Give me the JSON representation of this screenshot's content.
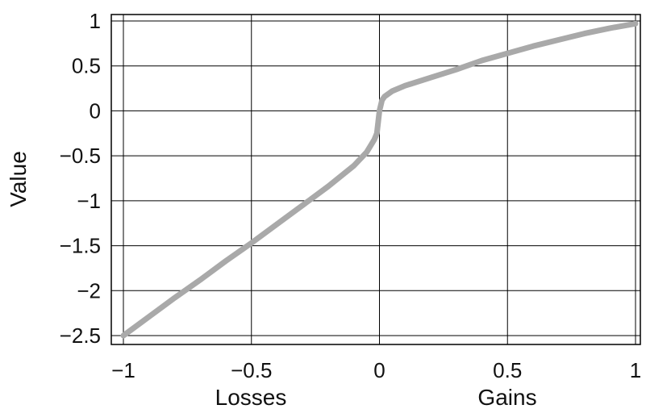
{
  "chart_data": {
    "type": "line",
    "title": "",
    "xlabel_left": "Losses",
    "xlabel_right": "Gains",
    "ylabel": "Value",
    "xlim": [
      -1,
      1
    ],
    "ylim": [
      -2.6,
      1.05
    ],
    "grid": true,
    "x_ticks": [
      -1,
      -0.5,
      0,
      0.5,
      1
    ],
    "x_tick_labels": [
      "−1",
      "−0.5",
      "0",
      "0.5",
      "1"
    ],
    "y_ticks": [
      1,
      0.5,
      0,
      -0.5,
      -1,
      -1.5,
      -2,
      -2.5
    ],
    "y_tick_labels": [
      "1",
      "0.5",
      "0",
      "−0.5",
      "−1",
      "−1.5",
      "−2",
      "−2.5"
    ],
    "series": [
      {
        "color": "#a9a9a9",
        "x": [
          -1,
          -0.9,
          -0.8,
          -0.7,
          -0.6,
          -0.5,
          -0.4,
          -0.3,
          -0.2,
          -0.1,
          -0.05,
          -0.02,
          -0.01,
          0,
          0.01,
          0.02,
          0.05,
          0.1,
          0.2,
          0.3,
          0.4,
          0.5,
          0.6,
          0.7,
          0.8,
          0.9,
          1
        ],
        "y": [
          -2.5,
          -2.29,
          -2.08,
          -1.88,
          -1.67,
          -1.47,
          -1.26,
          -1.05,
          -0.84,
          -0.61,
          -0.46,
          -0.32,
          -0.25,
          0,
          0.12,
          0.16,
          0.22,
          0.28,
          0.37,
          0.46,
          0.56,
          0.64,
          0.72,
          0.79,
          0.86,
          0.92,
          0.97
        ]
      }
    ]
  }
}
